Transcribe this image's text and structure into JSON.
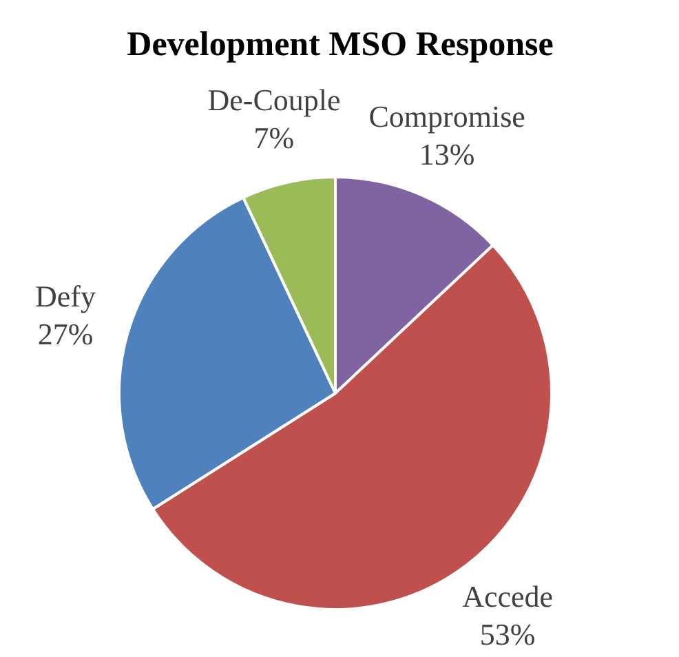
{
  "chart_data": {
    "type": "pie",
    "title": "Development MSO Response",
    "categories": [
      "Compromise",
      "Accede",
      "Defy",
      "De-Couple"
    ],
    "values": [
      13,
      53,
      27,
      7
    ],
    "colors": [
      "#8064a2",
      "#c0504d",
      "#4f81bd",
      "#9bbb59"
    ],
    "value_labels": [
      "13%",
      "53%",
      "27%",
      "7%"
    ]
  }
}
